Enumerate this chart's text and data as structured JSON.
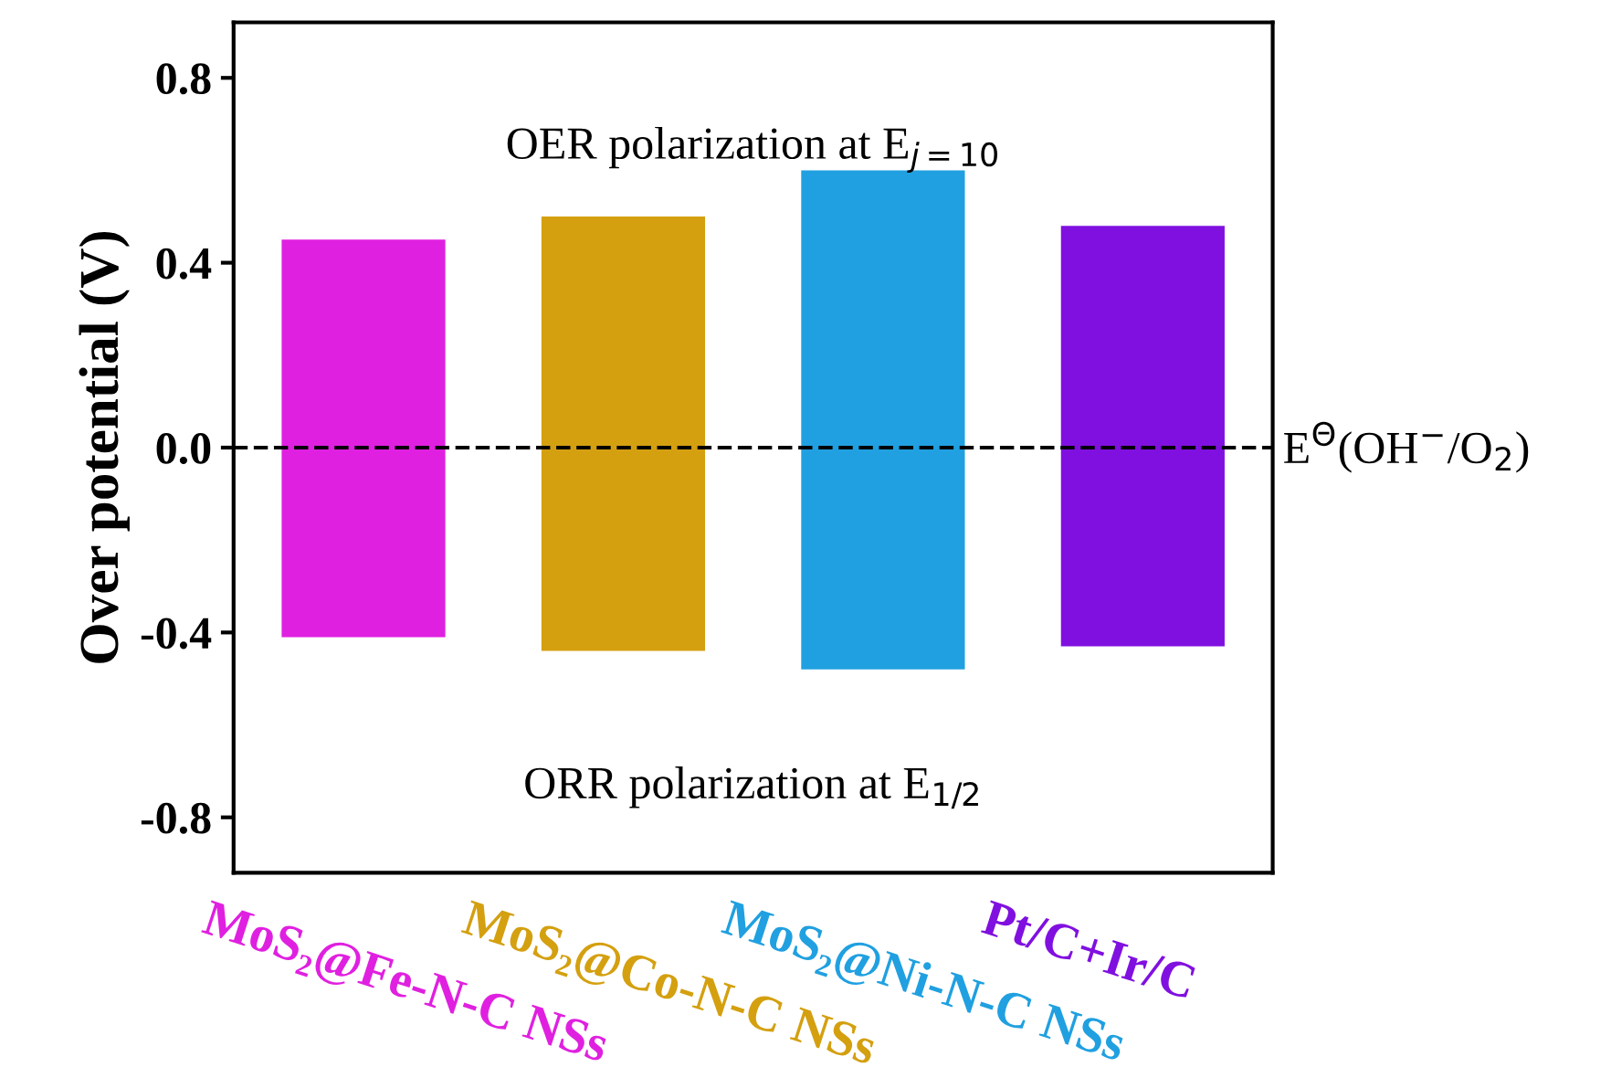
{
  "chart_data": {
    "type": "bar",
    "categories": [
      "MoS₂@Fe-N-C NSs",
      "MoS₂@Co-N-C NSs",
      "MoS₂@Ni-N-C NSs",
      "Pt/C+Ir/C"
    ],
    "base": [
      -0.41,
      -0.44,
      -0.48,
      -0.43
    ],
    "values": [
      0.86,
      0.94,
      1.08,
      0.91
    ],
    "colors": [
      "#e020e0",
      "#d4a010",
      "#20a0e0",
      "#8010e0"
    ],
    "ylabel": "Over potential (V)",
    "ylim": [
      -0.92,
      0.92
    ],
    "yticks": [
      {
        "value": -0.8,
        "label": "-0.8"
      },
      {
        "value": -0.4,
        "label": "-0.4"
      },
      {
        "value": 0.0,
        "label": "0.0"
      },
      {
        "value": 0.4,
        "label": "0.4"
      },
      {
        "value": 0.8,
        "label": "0.8"
      }
    ],
    "ref_lines": [
      {
        "axis": "y",
        "value": 0.0,
        "label": "E$^{Θ}$(OH$^{−}$/O$_{2}$)",
        "color": "#000000",
        "line_style": "dashed"
      }
    ],
    "annotations": [
      "OER polarization at E$_{j=10}$",
      "ORR polarization at E$_{1/2}$"
    ],
    "grid": false,
    "legend": false
  }
}
